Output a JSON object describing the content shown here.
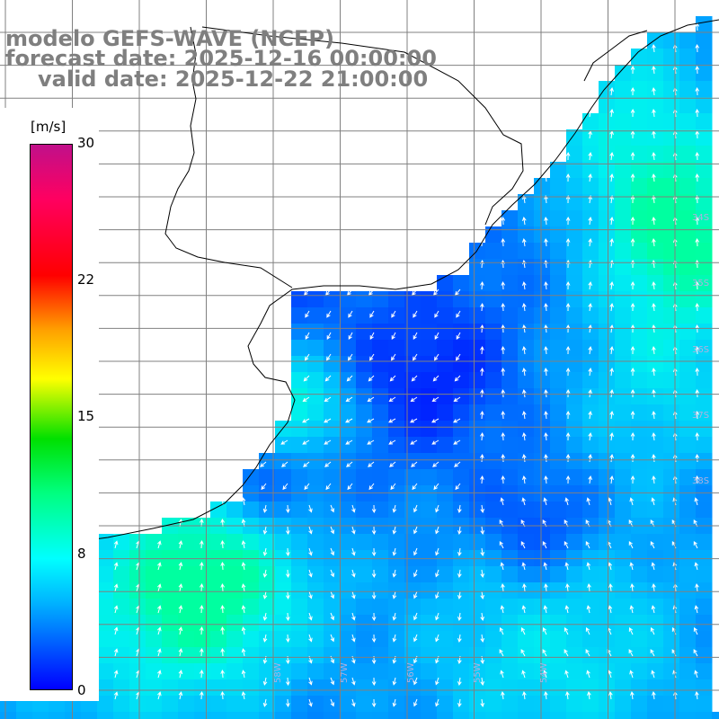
{
  "title": {
    "line1": "modelo GEFS-WAVE (NCEP)",
    "line2": "forecast date: 2025-12-16 00:00:00",
    "line3": "valid date: 2025-12-22 21:00:00"
  },
  "colorbar": {
    "unit": "[m/s]",
    "ticks": [
      "30",
      "22",
      "15",
      "8",
      "0"
    ],
    "range": [
      0,
      30
    ],
    "colors": [
      "#0000ff",
      "#00b4ff",
      "#00ffff",
      "#00ff80",
      "#00e000",
      "#ffff00",
      "#ffa000",
      "#ff0000",
      "#c0108a"
    ]
  },
  "map": {
    "variable": "wind speed and direction",
    "lat_labels": [
      "34S",
      "35S",
      "36S",
      "37S",
      "38S"
    ],
    "lon_labels": [
      "58W",
      "57W",
      "56W",
      "55W",
      "54W"
    ],
    "colors": {
      "land": "#ffffff",
      "coastline": "#000000",
      "grid": "#808080",
      "arrows": "#ffffff"
    }
  }
}
